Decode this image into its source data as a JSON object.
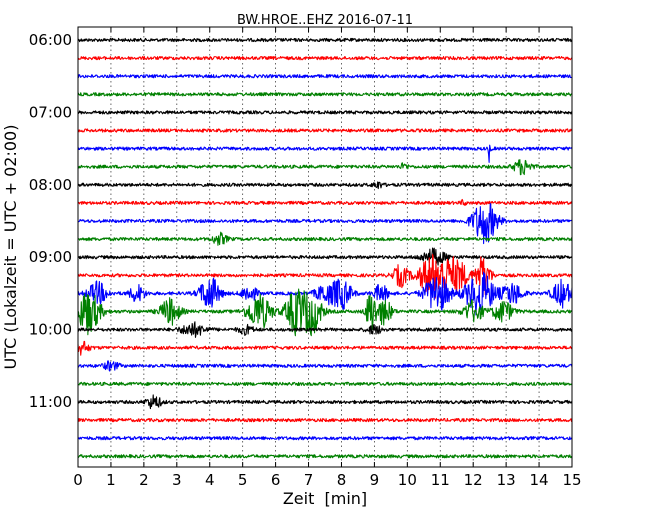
{
  "chart_data": {
    "type": "line",
    "title": "BW.HROE..EHZ 2016-07-11",
    "xlabel": "Zeit  [min]",
    "ylabel": "UTC (Lokalzeit = UTC + 02:00)",
    "xlim": [
      0,
      15
    ],
    "x_ticks": [
      "0",
      "1",
      "2",
      "3",
      "4",
      "5",
      "6",
      "7",
      "8",
      "9",
      "10",
      "11",
      "12",
      "13",
      "14",
      "15"
    ],
    "y_ticks": [
      {
        "label": "06:00",
        "row": 0
      },
      {
        "label": "07:00",
        "row": 4
      },
      {
        "label": "08:00",
        "row": 8
      },
      {
        "label": "09:00",
        "row": 12
      },
      {
        "label": "10:00",
        "row": 16
      },
      {
        "label": "11:00",
        "row": 20
      }
    ],
    "grid": true,
    "row_minutes": 15,
    "trace_colors": [
      "#000000",
      "#ff0000",
      "#0000ff",
      "#008000"
    ],
    "rows": [
      {
        "start": "06:00",
        "color": "#000000",
        "events": []
      },
      {
        "start": "06:15",
        "color": "#ff0000",
        "events": []
      },
      {
        "start": "06:30",
        "color": "#0000ff",
        "events": []
      },
      {
        "start": "06:45",
        "color": "#008000",
        "events": []
      },
      {
        "start": "07:00",
        "color": "#000000",
        "events": []
      },
      {
        "start": "07:15",
        "color": "#ff0000",
        "events": []
      },
      {
        "start": "07:30",
        "color": "#0000ff",
        "events": [
          [
            12.5,
            0.7,
            0.05
          ]
        ]
      },
      {
        "start": "07:45",
        "color": "#008000",
        "events": [
          [
            9.9,
            0.15,
            0.15
          ],
          [
            13.5,
            0.35,
            0.35
          ]
        ]
      },
      {
        "start": "08:00",
        "color": "#000000",
        "events": [
          [
            9.1,
            0.15,
            0.2
          ]
        ]
      },
      {
        "start": "08:15",
        "color": "#ff0000",
        "events": [
          [
            11.7,
            0.12,
            0.1
          ]
        ]
      },
      {
        "start": "08:30",
        "color": "#0000ff",
        "events": [
          [
            12.35,
            1.0,
            0.5
          ]
        ]
      },
      {
        "start": "08:45",
        "color": "#008000",
        "events": [
          [
            4.3,
            0.25,
            0.3
          ]
        ]
      },
      {
        "start": "09:00",
        "color": "#000000",
        "events": [
          [
            10.8,
            0.35,
            0.5
          ]
        ]
      },
      {
        "start": "09:15",
        "color": "#ff0000",
        "events": [
          [
            9.8,
            0.5,
            0.3
          ],
          [
            10.8,
            1.0,
            0.6
          ],
          [
            11.5,
            0.7,
            0.5
          ],
          [
            12.3,
            0.9,
            0.3
          ]
        ]
      },
      {
        "start": "09:30",
        "color": "#0000ff",
        "events": [
          [
            0.6,
            0.5,
            0.4
          ],
          [
            1.8,
            0.4,
            0.3
          ],
          [
            4.0,
            0.8,
            0.4
          ],
          [
            5.2,
            0.4,
            0.3
          ],
          [
            7.5,
            0.4,
            0.4
          ],
          [
            8.0,
            0.7,
            0.4
          ],
          [
            9.2,
            0.4,
            0.3
          ],
          [
            10.9,
            0.9,
            0.5
          ],
          [
            12.2,
            1.0,
            0.6
          ],
          [
            13.2,
            0.5,
            0.4
          ],
          [
            14.7,
            0.6,
            0.4
          ]
        ]
      },
      {
        "start": "09:45",
        "color": "#008000",
        "events": [
          [
            0.3,
            1.0,
            0.5
          ],
          [
            2.8,
            0.6,
            0.4
          ],
          [
            5.5,
            0.8,
            0.5
          ],
          [
            6.6,
            1.0,
            0.4
          ],
          [
            7.1,
            1.0,
            0.4
          ],
          [
            8.9,
            1.0,
            0.2
          ],
          [
            9.3,
            0.6,
            0.3
          ],
          [
            12.0,
            0.5,
            0.4
          ],
          [
            12.9,
            0.5,
            0.4
          ]
        ]
      },
      {
        "start": "10:00",
        "color": "#000000",
        "events": [
          [
            3.5,
            0.3,
            0.5
          ],
          [
            5.1,
            0.2,
            0.3
          ],
          [
            9.0,
            0.2,
            0.3
          ]
        ]
      },
      {
        "start": "10:15",
        "color": "#ff0000",
        "events": [
          [
            0.1,
            0.3,
            0.3
          ]
        ]
      },
      {
        "start": "10:30",
        "color": "#0000ff",
        "events": [
          [
            1.0,
            0.2,
            0.3
          ]
        ]
      },
      {
        "start": "10:45",
        "color": "#008000",
        "events": []
      },
      {
        "start": "11:00",
        "color": "#000000",
        "events": [
          [
            2.3,
            0.3,
            0.3
          ]
        ]
      },
      {
        "start": "11:15",
        "color": "#ff0000",
        "events": []
      },
      {
        "start": "11:30",
        "color": "#0000ff",
        "events": []
      },
      {
        "start": "11:45",
        "color": "#008000",
        "events": []
      }
    ]
  }
}
